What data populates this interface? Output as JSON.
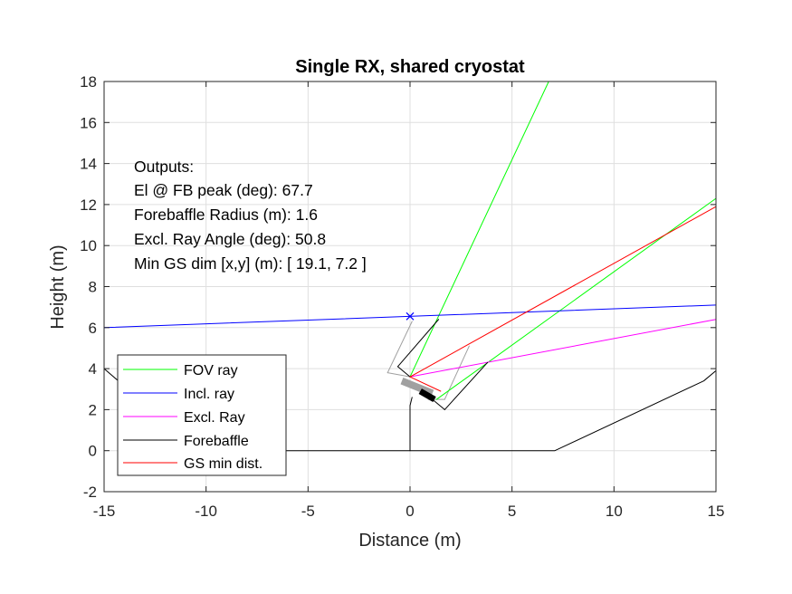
{
  "chart_data": {
    "type": "line",
    "title": "Single RX, shared cryostat",
    "xlabel": "Distance (m)",
    "ylabel": "Height (m)",
    "xlim": [
      -15,
      15
    ],
    "ylim": [
      -2,
      18
    ],
    "xticks": [
      -15,
      -10,
      -5,
      0,
      5,
      10,
      15
    ],
    "yticks": [
      -2,
      0,
      2,
      4,
      6,
      8,
      10,
      12,
      14,
      16,
      18
    ],
    "xtick_labels": [
      "-15",
      "-10",
      "-5",
      "0",
      "5",
      "10",
      "15"
    ],
    "ytick_labels": [
      "-2",
      "0",
      "2",
      "4",
      "6",
      "8",
      "10",
      "12",
      "14",
      "16",
      "18"
    ],
    "grid": true,
    "annotations": [
      "Outputs:",
      "El @ FB peak (deg): 67.7",
      "Forebaffle Radius (m): 1.6",
      "Excl. Ray Angle (deg): 50.8",
      "Min GS dim [x,y] (m): [ 19.1, 7.2 ]"
    ],
    "legend_position": "bottom-left",
    "series": [
      {
        "name": "FOV ray",
        "color": "#00ff00",
        "segments": [
          [
            [
              0,
              3.6
            ],
            [
              6.8,
              18
            ]
          ],
          [
            [
              1.3,
              2.5
            ],
            [
              15,
              12.3
            ]
          ]
        ]
      },
      {
        "name": "Incl. ray",
        "color": "#0000ff",
        "segments": [
          [
            [
              -15,
              6.0
            ],
            [
              15,
              7.1
            ]
          ]
        ],
        "marker": {
          "x": 0,
          "y": 6.55,
          "symbol": "x"
        }
      },
      {
        "name": "Excl. Ray",
        "color": "#ff00ff",
        "segments": [
          [
            [
              0,
              3.6
            ],
            [
              15,
              6.4
            ]
          ]
        ]
      },
      {
        "name": "Forebaffle",
        "color": "#000000",
        "segments": [
          [
            [
              -15,
              4.0
            ],
            [
              -14.3,
              3.4
            ],
            [
              -6.3,
              0
            ],
            [
              0,
              0
            ],
            [
              7.1,
              0
            ],
            [
              14.4,
              3.4
            ],
            [
              15,
              3.9
            ]
          ],
          [
            [
              0,
              0
            ],
            [
              0,
              2.2
            ]
          ],
          [
            [
              0,
              2.2
            ],
            [
              0.1,
              2.6
            ]
          ],
          [
            [
              -0.6,
              4.1
            ],
            [
              1.4,
              6.4
            ]
          ],
          [
            [
              -0.6,
              4.1
            ],
            [
              0,
              3.6
            ]
          ],
          [
            [
              1.7,
              2.0
            ],
            [
              3.8,
              4.3
            ]
          ],
          [
            [
              1.1,
              2.5
            ],
            [
              1.7,
              2.0
            ]
          ]
        ]
      },
      {
        "name": "GS min dist.",
        "color": "#ff0000",
        "segments": [
          [
            [
              0,
              3.6
            ],
            [
              15,
              11.9
            ]
          ],
          [
            [
              0,
              3.6
            ],
            [
              1.5,
              2.9
            ]
          ]
        ]
      }
    ],
    "unlisted_series": [
      {
        "color": "#a0a0a0",
        "segments": [
          [
            [
              -1.1,
              3.8
            ],
            [
              0.1,
              6.3
            ]
          ],
          [
            [
              -1.1,
              3.8
            ],
            [
              0,
              3.6
            ]
          ],
          [
            [
              1.7,
              2.5
            ],
            [
              2.9,
              5.1
            ]
          ],
          [
            [
              0.9,
              2.5
            ],
            [
              1.7,
              2.5
            ]
          ]
        ]
      },
      {
        "color": "#a0a0a0",
        "width_m": 0.35,
        "segments": [
          [
            [
              -0.4,
              3.4
            ],
            [
              1.1,
              2.8
            ]
          ]
        ]
      },
      {
        "color": "#000000",
        "width_m": 0.3,
        "segments": [
          [
            [
              0.5,
              2.9
            ],
            [
              1.2,
              2.5
            ]
          ]
        ]
      }
    ]
  }
}
